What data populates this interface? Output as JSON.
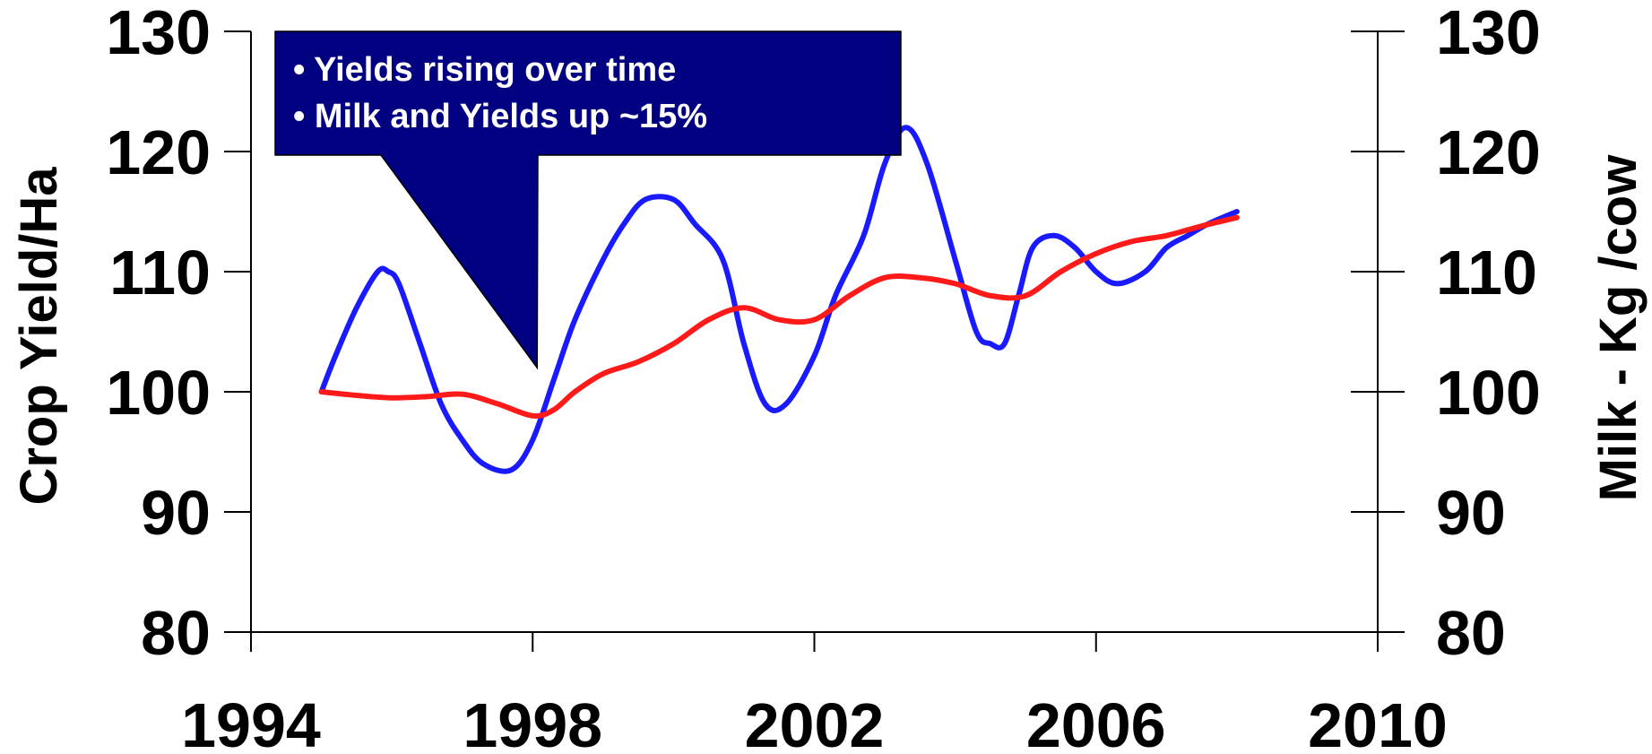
{
  "chart_data": {
    "type": "line",
    "title": "",
    "xlabel": "",
    "ylabel_left": "Crop Yield/Ha",
    "ylabel_right": "Milk - Kg /cow",
    "xlim": [
      1994,
      2010
    ],
    "ylim": [
      80,
      130
    ],
    "x_ticks": [
      1994,
      1998,
      2002,
      2006,
      2010
    ],
    "y_ticks": [
      80,
      90,
      100,
      110,
      120,
      130
    ],
    "grid": false,
    "series": [
      {
        "color": "#1a1aff",
        "x": [
          1995,
          1995.2,
          1995.5,
          1995.8,
          1995.95,
          1996.1,
          1996.4,
          1996.7,
          1997.0,
          1997.3,
          1997.7,
          1998.0,
          1998.3,
          1998.6,
          1999.0,
          1999.3,
          1999.6,
          2000.0,
          2000.3,
          2000.7,
          2001.0,
          2001.3,
          2001.6,
          2002.0,
          2002.3,
          2002.7,
          2003.0,
          2003.3,
          2003.6,
          2004.0,
          2004.3,
          2004.5,
          2004.7,
          2004.9,
          2005.1,
          2005.4,
          2005.7,
          2006.0,
          2006.3,
          2006.7,
          2007.0,
          2007.3,
          2007.6,
          2008.0
        ],
        "y": [
          100,
          103,
          107,
          110,
          110,
          109,
          104,
          99,
          96,
          94,
          93.5,
          96,
          101,
          106,
          111,
          114,
          116,
          116,
          114,
          111,
          104,
          99,
          99,
          103,
          108,
          113,
          119,
          122,
          119,
          111,
          105,
          104,
          104,
          108,
          112,
          113,
          112,
          110,
          109,
          110,
          112,
          113,
          114,
          115
        ]
      },
      {
        "color": "#ff1a1a",
        "x": [
          1995,
          1995.5,
          1996,
          1996.5,
          1997,
          1997.5,
          1998,
          1998.3,
          1998.6,
          1999,
          1999.5,
          2000,
          2000.5,
          2001,
          2001.5,
          2002,
          2002.5,
          2003,
          2003.5,
          2004,
          2004.5,
          2005,
          2005.5,
          2006,
          2006.5,
          2007,
          2007.5,
          2008
        ],
        "y": [
          100,
          99.7,
          99.5,
          99.6,
          99.8,
          99,
          98,
          98.5,
          100,
          101.5,
          102.5,
          104,
          106,
          107,
          106,
          106,
          108,
          109.5,
          109.5,
          109,
          108,
          108,
          110,
          111.5,
          112.5,
          113,
          113.8,
          114.5
        ]
      }
    ],
    "annotation": {
      "lines": [
        "• Yields rising over time",
        "• Milk and Yields up ~15%"
      ],
      "fill": "#000080",
      "text_color": "#ffffff",
      "pointer_target": [
        1998,
        102
      ]
    }
  }
}
